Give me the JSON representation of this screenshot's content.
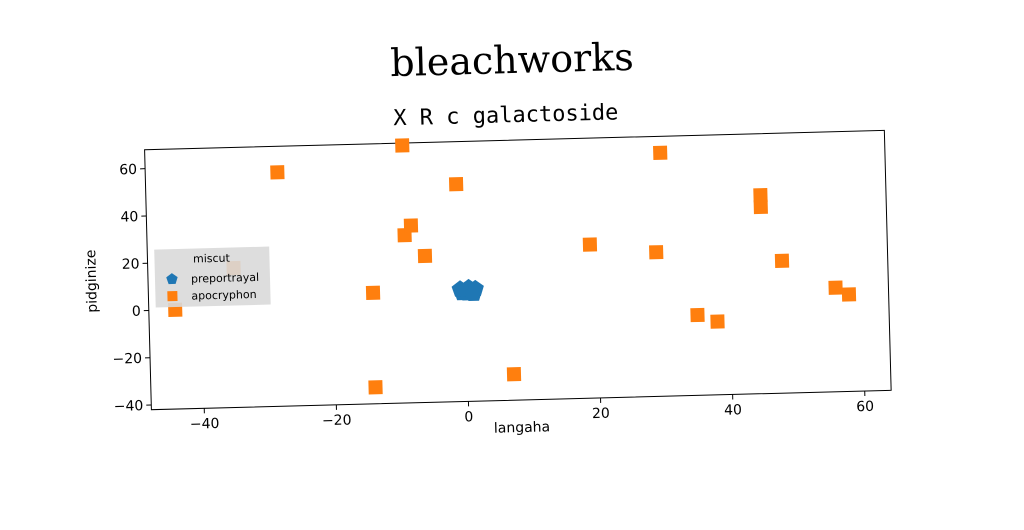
{
  "suptitle": "bleachworks",
  "chart_data": {
    "type": "scatter",
    "title": "X R c galactoside",
    "xlabel": "langaha",
    "ylabel": "pidginize",
    "xlim": [
      -48,
      64
    ],
    "ylim": [
      -42,
      68
    ],
    "xticks": [
      -40,
      -20,
      0,
      20,
      40,
      60
    ],
    "yticks": [
      -40,
      -20,
      0,
      20,
      40,
      60
    ],
    "grid": false,
    "legend": {
      "title": "miscut",
      "placement": "center-left"
    },
    "series": [
      {
        "name": "preportrayal",
        "marker": "pentagon",
        "color": "#1f77b4",
        "points": [
          [
            0,
            5
          ],
          [
            0.5,
            6
          ],
          [
            1,
            4.5
          ],
          [
            -0.5,
            4
          ],
          [
            1.5,
            5.5
          ],
          [
            0.3,
            3.8
          ],
          [
            -0.8,
            5.5
          ],
          [
            1.2,
            3.5
          ]
        ]
      },
      {
        "name": "apocryphon",
        "marker": "square",
        "color": "#ff7f0e",
        "points": [
          [
            -44,
            0
          ],
          [
            -35,
            17
          ],
          [
            -28,
            57
          ],
          [
            -14,
            5
          ],
          [
            -14,
            -35
          ],
          [
            -9,
            67
          ],
          [
            -9,
            29
          ],
          [
            -8,
            33
          ],
          [
            -6,
            20
          ],
          [
            -1,
            50
          ],
          [
            7,
            -31
          ],
          [
            19,
            23
          ],
          [
            29,
            19
          ],
          [
            30,
            61
          ],
          [
            35,
            -8
          ],
          [
            38,
            -11
          ],
          [
            45,
            42
          ],
          [
            45,
            37
          ],
          [
            48,
            14
          ],
          [
            56,
            2
          ],
          [
            58,
            -1
          ]
        ]
      }
    ]
  }
}
